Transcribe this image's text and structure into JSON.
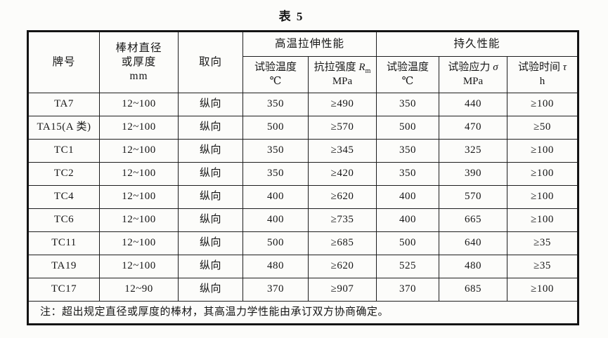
{
  "title": "表 5",
  "table": {
    "header": {
      "grade": "牌号",
      "size": "棒材直径\n或厚度\nmm",
      "orientation": "取向",
      "tensile_group": "高温拉伸性能",
      "endurance_group": "持久性能",
      "tensile_temp": {
        "label": "试验温度",
        "unit": "℃"
      },
      "tensile_strength": {
        "label": "抗拉强度 ",
        "symbol": "R",
        "sub": "m",
        "unit": "MPa"
      },
      "endurance_temp": {
        "label": "试验温度",
        "unit": "℃"
      },
      "endurance_stress": {
        "label": "试验应力 ",
        "symbol": "σ",
        "unit": "MPa"
      },
      "endurance_time": {
        "label": "试验时间 ",
        "symbol": "τ",
        "unit": "h"
      }
    },
    "rows": [
      {
        "grade": "TA7",
        "size": "12~100",
        "orientation": "纵向",
        "tensile_temp": "350",
        "tensile_strength": "≥490",
        "endurance_temp": "350",
        "endurance_stress": "440",
        "endurance_time": "≥100"
      },
      {
        "grade": "TA15(A 类)",
        "size": "12~100",
        "orientation": "纵向",
        "tensile_temp": "500",
        "tensile_strength": "≥570",
        "endurance_temp": "500",
        "endurance_stress": "470",
        "endurance_time": "≥50"
      },
      {
        "grade": "TC1",
        "size": "12~100",
        "orientation": "纵向",
        "tensile_temp": "350",
        "tensile_strength": "≥345",
        "endurance_temp": "350",
        "endurance_stress": "325",
        "endurance_time": "≥100"
      },
      {
        "grade": "TC2",
        "size": "12~100",
        "orientation": "纵向",
        "tensile_temp": "350",
        "tensile_strength": "≥420",
        "endurance_temp": "350",
        "endurance_stress": "390",
        "endurance_time": "≥100"
      },
      {
        "grade": "TC4",
        "size": "12~100",
        "orientation": "纵向",
        "tensile_temp": "400",
        "tensile_strength": "≥620",
        "endurance_temp": "400",
        "endurance_stress": "570",
        "endurance_time": "≥100"
      },
      {
        "grade": "TC6",
        "size": "12~100",
        "orientation": "纵向",
        "tensile_temp": "400",
        "tensile_strength": "≥735",
        "endurance_temp": "400",
        "endurance_stress": "665",
        "endurance_time": "≥100"
      },
      {
        "grade": "TC11",
        "size": "12~100",
        "orientation": "纵向",
        "tensile_temp": "500",
        "tensile_strength": "≥685",
        "endurance_temp": "500",
        "endurance_stress": "640",
        "endurance_time": "≥35"
      },
      {
        "grade": "TA19",
        "size": "12~100",
        "orientation": "纵向",
        "tensile_temp": "480",
        "tensile_strength": "≥620",
        "endurance_temp": "525",
        "endurance_stress": "480",
        "endurance_time": "≥35"
      },
      {
        "grade": "TC17",
        "size": "12~90",
        "orientation": "纵向",
        "tensile_temp": "370",
        "tensile_strength": "≥907",
        "endurance_temp": "370",
        "endurance_stress": "685",
        "endurance_time": "≥100"
      }
    ],
    "note": "注：超出规定直径或厚度的棒材，其高温力学性能由承订双方协商确定。"
  }
}
